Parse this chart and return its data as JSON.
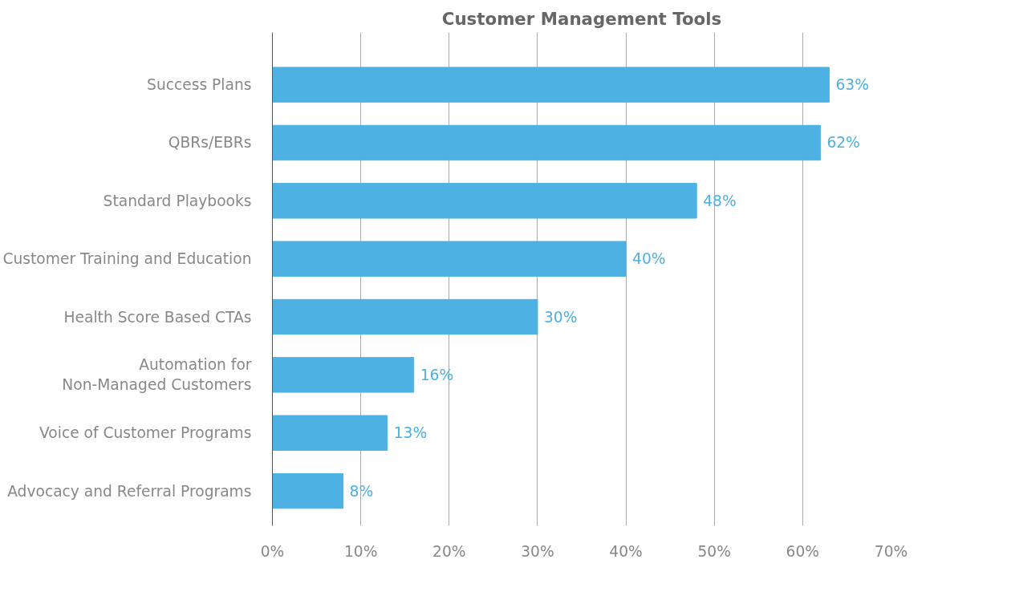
{
  "chart_data": {
    "type": "bar",
    "title": "Customer Management Tools",
    "orientation": "horizontal",
    "categories": [
      "Success Plans",
      "QBRs/EBRs",
      "Standard Playbooks",
      "Customer Training and Education",
      "Health Score Based CTAs",
      "Automation for\nNon-Managed Customers",
      "Voice of Customer Programs",
      "Advocacy and Referral Programs"
    ],
    "values": [
      63,
      62,
      48,
      40,
      30,
      16,
      13,
      8
    ],
    "value_labels": [
      "63%",
      "62%",
      "48%",
      "40%",
      "30%",
      "16%",
      "13%",
      "8%"
    ],
    "color": "#4db1e3",
    "xlim": [
      0,
      70
    ],
    "xticks": [
      {
        "value": 0,
        "label": "0%"
      },
      {
        "value": 10,
        "label": "10%"
      },
      {
        "value": 20,
        "label": "20%"
      },
      {
        "value": 30,
        "label": "30%"
      },
      {
        "value": 40,
        "label": "40%"
      },
      {
        "value": 50,
        "label": "50%"
      },
      {
        "value": 60,
        "label": "60%"
      },
      {
        "value": 70,
        "label": "70%"
      }
    ],
    "grid": "x"
  }
}
